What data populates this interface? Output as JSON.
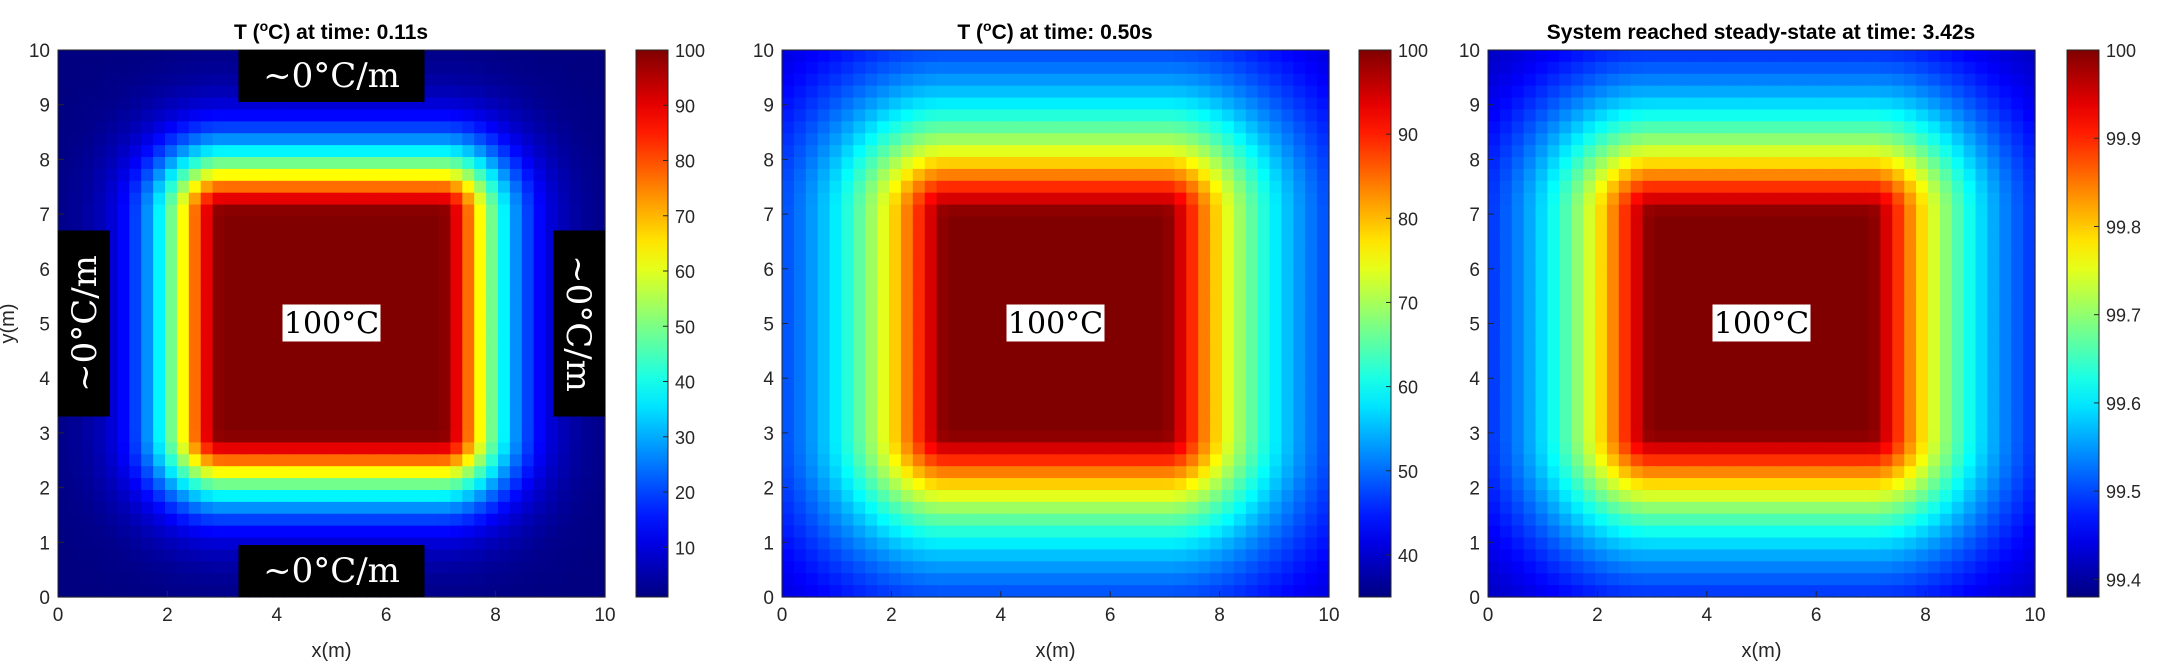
{
  "colormap": "jet",
  "chart_data": [
    {
      "type": "heatmap",
      "title_prefix": "T (",
      "title_unit_sup": "o",
      "title_suffix": "C) at time: 0.11s",
      "xlabel": "x(m)",
      "ylabel": "y(m)",
      "xlim": [
        0,
        10
      ],
      "ylim": [
        0,
        10
      ],
      "xticks": [
        "0",
        "2",
        "4",
        "6",
        "8",
        "10"
      ],
      "yticks": [
        "0",
        "1",
        "2",
        "3",
        "4",
        "5",
        "6",
        "7",
        "8",
        "9",
        "10"
      ],
      "hot_region": {
        "x": [
          3,
          7
        ],
        "y": [
          3,
          7
        ],
        "value": 100
      },
      "colorbar": {
        "min": 1,
        "max": 100,
        "ticks": [
          "10",
          "20",
          "30",
          "40",
          "50",
          "60",
          "70",
          "80",
          "90",
          "100"
        ]
      },
      "field": {
        "core_value": 100,
        "edge_value": 1
      },
      "annotations": {
        "center": "100°C",
        "top": "~0°C/m",
        "bottom": "~0°C/m",
        "left": "~0°C/m",
        "right": "~0°C/m"
      }
    },
    {
      "type": "heatmap",
      "title_prefix": "T (",
      "title_unit_sup": "o",
      "title_suffix": "C) at time: 0.50s",
      "xlabel": "x(m)",
      "ylabel": "",
      "xlim": [
        0,
        10
      ],
      "ylim": [
        0,
        10
      ],
      "xticks": [
        "0",
        "2",
        "4",
        "6",
        "8",
        "10"
      ],
      "yticks": [
        "0",
        "1",
        "2",
        "3",
        "4",
        "5",
        "6",
        "7",
        "8",
        "9",
        "10"
      ],
      "hot_region": {
        "x": [
          3,
          7
        ],
        "y": [
          3,
          7
        ],
        "value": 100
      },
      "colorbar": {
        "min": 35,
        "max": 100,
        "ticks": [
          "40",
          "50",
          "60",
          "70",
          "80",
          "90",
          "100"
        ]
      },
      "field": {
        "core_value": 100,
        "edge_value": 37
      },
      "annotations": {
        "center": "100°C"
      }
    },
    {
      "type": "heatmap",
      "title_prefix": "System reached steady-state at time: 3.42s",
      "title_unit_sup": "",
      "title_suffix": "",
      "xlabel": "x(m)",
      "ylabel": "",
      "xlim": [
        0,
        10
      ],
      "ylim": [
        0,
        10
      ],
      "xticks": [
        "0",
        "2",
        "4",
        "6",
        "8",
        "10"
      ],
      "yticks": [
        "0",
        "1",
        "2",
        "3",
        "4",
        "5",
        "6",
        "7",
        "8",
        "9",
        "10"
      ],
      "hot_region": {
        "x": [
          3,
          7
        ],
        "y": [
          3,
          7
        ],
        "value": 100
      },
      "colorbar": {
        "min": 99.38,
        "max": 100,
        "ticks": [
          "99.4",
          "99.5",
          "99.6",
          "99.7",
          "99.8",
          "99.9",
          "100"
        ]
      },
      "field": {
        "core_value": 100,
        "edge_value": 99.38
      },
      "annotations": {
        "center": "100°C"
      }
    }
  ]
}
